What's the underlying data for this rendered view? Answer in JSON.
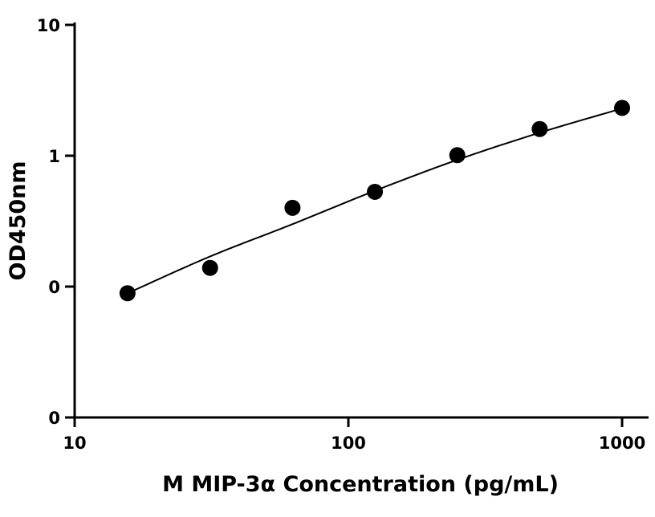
{
  "chart_data": {
    "type": "scatter",
    "title": "",
    "xlabel": "M MIP-3α Concentration (pg/mL)",
    "ylabel": "OD450nm",
    "x_scale": "log",
    "y_scale": "log",
    "xlim": [
      10,
      1000
    ],
    "ylim": [
      0.01,
      10
    ],
    "x_ticks": [
      10,
      100,
      1000
    ],
    "x_tick_labels": [
      "10",
      "100",
      "1000"
    ],
    "y_ticks": [
      0.01,
      0.1,
      1,
      10
    ],
    "y_tick_labels": [
      "0",
      "0",
      "1",
      "10"
    ],
    "grid": false,
    "legend": "none",
    "series": [
      {
        "x": [
          15.6,
          31.25,
          62.5,
          125,
          250,
          500,
          1000
        ],
        "y": [
          0.089,
          0.139,
          0.4,
          0.53,
          1.01,
          1.6,
          2.32
        ],
        "marker_color": "#000000",
        "fit_curve": {
          "x": [
            15.6,
            31.25,
            62.5,
            125,
            250,
            500,
            1000
          ],
          "y": [
            0.089,
            0.17,
            0.3,
            0.54,
            0.93,
            1.5,
            2.3
          ],
          "color": "#000000"
        }
      }
    ]
  }
}
